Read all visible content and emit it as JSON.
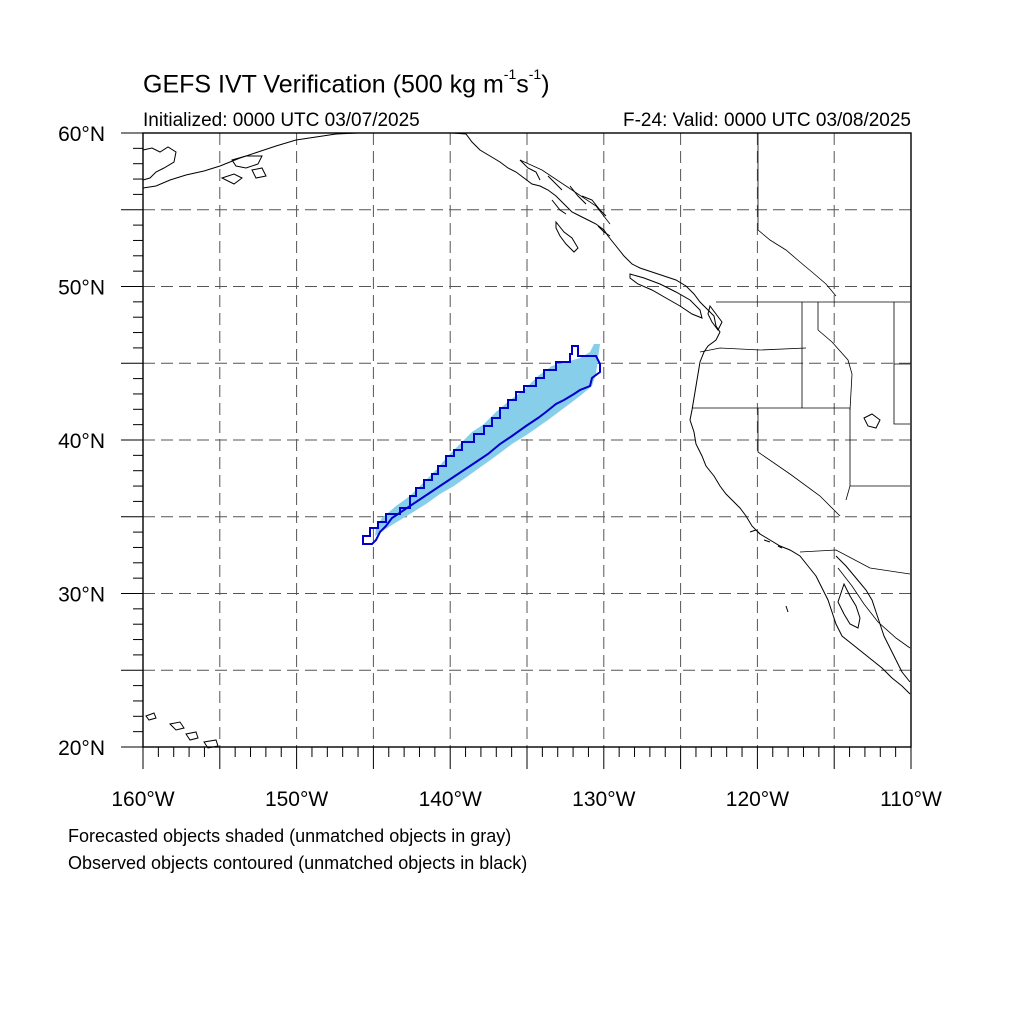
{
  "header": {
    "title_text": "GEFS IVT Verification (500 kg m",
    "title_exp1": "-1",
    "title_mid": "s",
    "title_exp2": "-1",
    "title_end": ")",
    "init_text": "Initialized: 0000 UTC 03/07/2025",
    "valid_text": "F-24: Valid: 0000 UTC 03/08/2025"
  },
  "map": {
    "lon_range": [
      -160,
      -110
    ],
    "lat_range": [
      20,
      60
    ],
    "lat_labels": [
      {
        "lat": 60,
        "text": "60°N"
      },
      {
        "lat": 50,
        "text": "50°N"
      },
      {
        "lat": 40,
        "text": "40°N"
      },
      {
        "lat": 30,
        "text": "30°N"
      },
      {
        "lat": 20,
        "text": "20°N"
      }
    ],
    "lon_labels": [
      {
        "lon": -160,
        "text": "160°W"
      },
      {
        "lon": -150,
        "text": "150°W"
      },
      {
        "lon": -140,
        "text": "140°W"
      },
      {
        "lon": -130,
        "text": "130°W"
      },
      {
        "lon": -120,
        "text": "120°W"
      },
      {
        "lon": -110,
        "text": "110°W"
      }
    ],
    "gridline_spacing_deg": 5,
    "gridline_style": "dashed",
    "forecast_fill_color": "#87ceeb",
    "observed_contour_color": "#0000cd",
    "coastline_color": "#000000"
  },
  "footer": {
    "note_forecast": "Forecasted objects shaded (unmatched objects in gray)",
    "note_observed": "Observed objects contoured (unmatched objects in black)"
  }
}
